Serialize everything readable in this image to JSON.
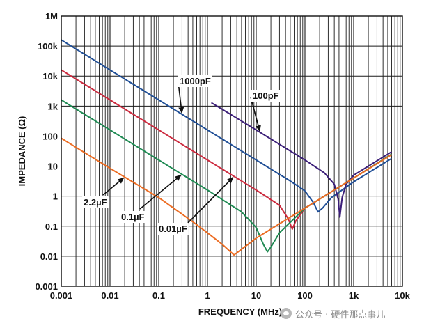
{
  "chart_data": {
    "type": "line",
    "title": "",
    "xlabel": "FREQUENCY (MHz)",
    "ylabel": "IMPEDANCE (Ω)",
    "x_scale": "log",
    "y_scale": "log",
    "xlim": [
      0.001,
      10000
    ],
    "ylim": [
      0.001,
      1000000
    ],
    "grid": true,
    "x_ticks": [
      {
        "value": 0.001,
        "label": "0.001"
      },
      {
        "value": 0.01,
        "label": "0.01"
      },
      {
        "value": 0.1,
        "label": "0.1"
      },
      {
        "value": 1,
        "label": "1"
      },
      {
        "value": 10,
        "label": "10"
      },
      {
        "value": 100,
        "label": "100"
      },
      {
        "value": 1000,
        "label": "1k"
      },
      {
        "value": 10000,
        "label": "10k"
      }
    ],
    "y_ticks": [
      {
        "value": 0.001,
        "label": "0.001"
      },
      {
        "value": 0.01,
        "label": "0.01"
      },
      {
        "value": 0.1,
        "label": "0.1"
      },
      {
        "value": 1,
        "label": "1"
      },
      {
        "value": 10,
        "label": "10"
      },
      {
        "value": 100,
        "label": "100"
      },
      {
        "value": 1000,
        "label": "1k"
      },
      {
        "value": 10000,
        "label": "10k"
      },
      {
        "value": 100000,
        "label": "100k"
      },
      {
        "value": 1000000,
        "label": "1M"
      }
    ],
    "series": [
      {
        "name": "1000pF",
        "color": "#1f4e96",
        "points": [
          [
            0.001,
            160000
          ],
          [
            0.01,
            16000
          ],
          [
            0.1,
            1600
          ],
          [
            1,
            160
          ],
          [
            10,
            16
          ],
          [
            50,
            3.2
          ],
          [
            100,
            1.5
          ],
          [
            150,
            0.6
          ],
          [
            185,
            0.3
          ],
          [
            230,
            0.4
          ],
          [
            350,
            0.9
          ],
          [
            1000,
            3
          ],
          [
            6000,
            18
          ]
        ]
      },
      {
        "name": "100pF",
        "color": "#3b1e78",
        "points": [
          [
            1.2,
            1300
          ],
          [
            10,
            160
          ],
          [
            100,
            16
          ],
          [
            250,
            6
          ],
          [
            400,
            2.5
          ],
          [
            480,
            0.8
          ],
          [
            520,
            0.2
          ],
          [
            580,
            0.9
          ],
          [
            700,
            2.5
          ],
          [
            1000,
            5
          ],
          [
            6000,
            30
          ]
        ]
      },
      {
        "name": "0.01µF",
        "color": "#cc2a3e",
        "points": [
          [
            0.001,
            16000
          ],
          [
            0.01,
            1600
          ],
          [
            0.1,
            160
          ],
          [
            1,
            16
          ],
          [
            10,
            1.6
          ],
          [
            30,
            0.5
          ],
          [
            45,
            0.18
          ],
          [
            55,
            0.08
          ],
          [
            65,
            0.15
          ],
          [
            100,
            0.4
          ],
          [
            1000,
            4
          ],
          [
            6000,
            25
          ]
        ]
      },
      {
        "name": "0.1µF",
        "color": "#1e8a52",
        "points": [
          [
            0.001,
            1600
          ],
          [
            0.01,
            160
          ],
          [
            0.1,
            16
          ],
          [
            1,
            1.6
          ],
          [
            5,
            0.3
          ],
          [
            10,
            0.09
          ],
          [
            14,
            0.025
          ],
          [
            17,
            0.014
          ],
          [
            20,
            0.02
          ],
          [
            30,
            0.06
          ],
          [
            100,
            0.4
          ],
          [
            1000,
            4
          ],
          [
            6000,
            25
          ]
        ]
      },
      {
        "name": "2.2µF",
        "color": "#ec6c22",
        "points": [
          [
            0.001,
            85
          ],
          [
            0.01,
            8.5
          ],
          [
            0.1,
            0.9
          ],
          [
            0.5,
            0.14
          ],
          [
            1,
            0.06
          ],
          [
            2,
            0.025
          ],
          [
            3.5,
            0.011
          ],
          [
            5,
            0.017
          ],
          [
            10,
            0.04
          ],
          [
            100,
            0.4
          ],
          [
            1000,
            4
          ],
          [
            6000,
            24
          ]
        ]
      }
    ],
    "annotations": [
      {
        "label": "1000pF",
        "target_series": "1000pF"
      },
      {
        "label": "100pF",
        "target_series": "100pF"
      },
      {
        "label": "2.2µF",
        "target_series": "2.2µF"
      },
      {
        "label": "0.1µF",
        "target_series": "0.1µF"
      },
      {
        "label": "0.01µF",
        "target_series": "0.01µF"
      }
    ]
  },
  "watermark": {
    "text": "公众号 · 硬件那点事儿",
    "icon": "wechat-icon"
  }
}
